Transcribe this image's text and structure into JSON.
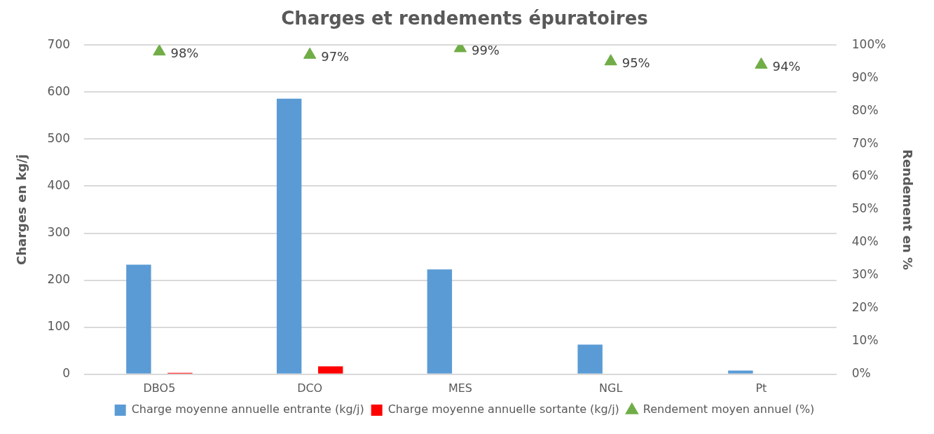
{
  "chart_data": {
    "type": "bar",
    "title": "Charges et rendements épuratoires",
    "ylabel": "Charges en kg/j",
    "y2label": "Rendement en %",
    "categories": [
      "DBO5",
      "DCO",
      "MES",
      "NGL",
      "Pt"
    ],
    "series": [
      {
        "name": "Charge moyenne annuelle entrante (kg/j)",
        "color": "#5b9bd5",
        "values": [
          233,
          586,
          223,
          63,
          8
        ]
      },
      {
        "name": "Charge moyenne annuelle sortante (kg/j)",
        "color": "#ff0000",
        "values": [
          3,
          17,
          null,
          null,
          null
        ]
      },
      {
        "name": "Rendement moyen annuel (%)",
        "type": "scatter",
        "axis": "y2",
        "color": "#70ad47",
        "marker": "triangle",
        "values": [
          98,
          97,
          99,
          95,
          94
        ],
        "value_labels": [
          "98%",
          "97%",
          "99%",
          "95%",
          "94%"
        ]
      }
    ],
    "ylim": [
      0,
      700
    ],
    "yticks": [
      0,
      100,
      200,
      300,
      400,
      500,
      600,
      700
    ],
    "y2lim": [
      0,
      100
    ],
    "y2ticks": [
      {
        "value": 0,
        "label": "0%"
      },
      {
        "value": 10,
        "label": "10%"
      },
      {
        "value": 20,
        "label": "20%"
      },
      {
        "value": 30,
        "label": "30%"
      },
      {
        "value": 40,
        "label": "40%"
      },
      {
        "value": 50,
        "label": "50%"
      },
      {
        "value": 60,
        "label": "60%"
      },
      {
        "value": 70,
        "label": "70%"
      },
      {
        "value": 80,
        "label": "80%"
      },
      {
        "value": 90,
        "label": "90%"
      },
      {
        "value": 100,
        "label": "100%"
      }
    ],
    "grid": "y",
    "legend": "bottom"
  }
}
